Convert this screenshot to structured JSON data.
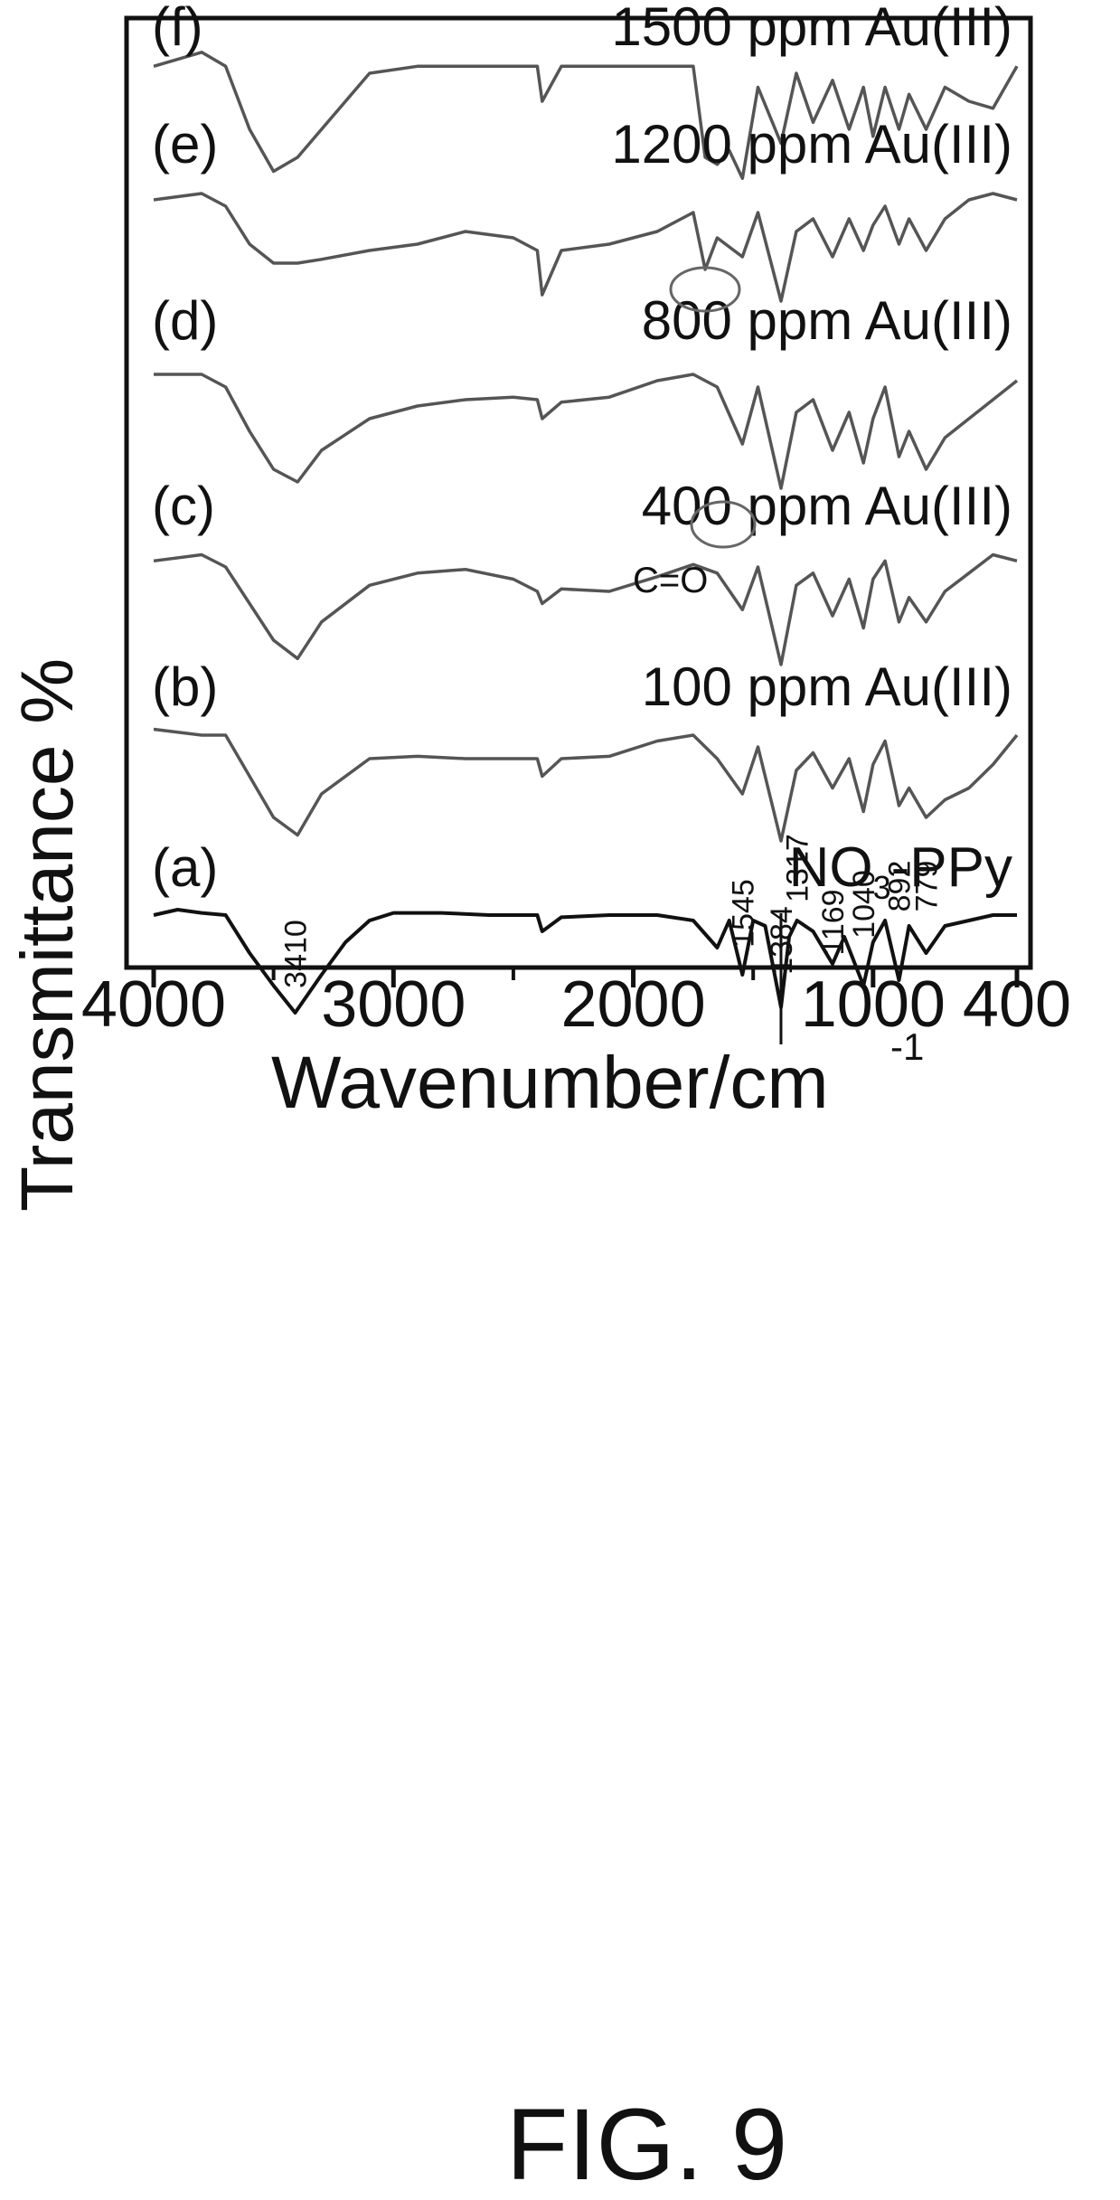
{
  "figure_label": "FIG. 9",
  "chart_data": {
    "type": "line",
    "xlabel": "Wavenumber/cm",
    "xlabel_sup": "-1",
    "ylabel": "Transmittance %",
    "xlim": [
      4000,
      400
    ],
    "x_ticks": [
      4000,
      3000,
      2000,
      1000,
      400
    ],
    "x_tick_labels": [
      "4000",
      "3000",
      "2000",
      "1000",
      "400"
    ],
    "x_minor_ticks": [
      3500,
      2500,
      1500
    ],
    "series": [
      {
        "name": "NO3-PPy",
        "panel": "(a)",
        "label": "NO",
        "label_sub": "3",
        "label_suffix": "-PPy",
        "x": [
          4000,
          3900,
          3800,
          3700,
          3600,
          3500,
          3410,
          3300,
          3200,
          3100,
          3000,
          2800,
          2600,
          2400,
          2380,
          2300,
          2100,
          1900,
          1750,
          1650,
          1600,
          1545,
          1500,
          1450,
          1384,
          1350,
          1317,
          1250,
          1169,
          1120,
          1040,
          1000,
          950,
          892,
          850,
          779,
          700,
          600,
          500,
          400
        ],
        "y": [
          0.9,
          0.95,
          0.92,
          0.9,
          0.55,
          0.25,
          0.0,
          0.35,
          0.65,
          0.85,
          0.92,
          0.92,
          0.9,
          0.9,
          0.75,
          0.88,
          0.9,
          0.9,
          0.85,
          0.6,
          0.85,
          0.35,
          0.85,
          0.8,
          0.05,
          0.7,
          0.85,
          0.75,
          0.45,
          0.7,
          0.25,
          0.65,
          0.85,
          0.3,
          0.8,
          0.55,
          0.8,
          0.85,
          0.9,
          0.9
        ]
      },
      {
        "name": "100 ppm Au(III)",
        "panel": "(b)",
        "label": "100 ppm Au(III)",
        "x": [
          4000,
          3800,
          3700,
          3600,
          3500,
          3400,
          3300,
          3100,
          2900,
          2700,
          2500,
          2400,
          2380,
          2300,
          2100,
          1900,
          1750,
          1650,
          1545,
          1480,
          1384,
          1320,
          1250,
          1169,
          1100,
          1040,
          1000,
          950,
          892,
          850,
          779,
          700,
          600,
          500,
          400
        ],
        "y": [
          0.95,
          0.9,
          0.9,
          0.55,
          0.2,
          0.05,
          0.4,
          0.7,
          0.72,
          0.7,
          0.7,
          0.7,
          0.55,
          0.7,
          0.72,
          0.85,
          0.9,
          0.7,
          0.4,
          0.8,
          0.0,
          0.6,
          0.75,
          0.45,
          0.7,
          0.25,
          0.65,
          0.85,
          0.3,
          0.45,
          0.2,
          0.35,
          0.45,
          0.65,
          0.9
        ]
      },
      {
        "name": "400 ppm Au(III)",
        "panel": "(c)",
        "label": "400 ppm Au(III)",
        "x": [
          4000,
          3800,
          3700,
          3600,
          3500,
          3400,
          3300,
          3100,
          2900,
          2700,
          2500,
          2400,
          2380,
          2300,
          2100,
          1900,
          1750,
          1650,
          1545,
          1480,
          1384,
          1320,
          1250,
          1169,
          1100,
          1040,
          1000,
          950,
          892,
          850,
          779,
          700,
          600,
          500,
          400
        ],
        "y": [
          0.85,
          0.9,
          0.8,
          0.5,
          0.2,
          0.05,
          0.35,
          0.65,
          0.75,
          0.78,
          0.7,
          0.6,
          0.5,
          0.62,
          0.6,
          0.72,
          0.82,
          0.75,
          0.45,
          0.8,
          0.0,
          0.65,
          0.75,
          0.4,
          0.7,
          0.3,
          0.7,
          0.85,
          0.35,
          0.55,
          0.35,
          0.6,
          0.75,
          0.9,
          0.85
        ]
      },
      {
        "name": "800 ppm Au(III)",
        "panel": "(d)",
        "label": "800 ppm Au(III)",
        "x": [
          4000,
          3800,
          3700,
          3600,
          3500,
          3400,
          3300,
          3100,
          2900,
          2700,
          2500,
          2400,
          2380,
          2300,
          2100,
          1900,
          1750,
          1650,
          1545,
          1480,
          1384,
          1320,
          1250,
          1169,
          1100,
          1040,
          1000,
          950,
          892,
          850,
          779,
          700,
          600,
          500,
          400
        ],
        "y": [
          0.9,
          0.9,
          0.8,
          0.45,
          0.15,
          0.05,
          0.3,
          0.55,
          0.65,
          0.7,
          0.72,
          0.7,
          0.55,
          0.68,
          0.72,
          0.85,
          0.9,
          0.8,
          0.35,
          0.8,
          0.0,
          0.6,
          0.7,
          0.3,
          0.6,
          0.2,
          0.55,
          0.8,
          0.25,
          0.45,
          0.15,
          0.4,
          0.55,
          0.7,
          0.85
        ]
      },
      {
        "name": "1200 ppm Au(III)",
        "panel": "(e)",
        "label": "1200 ppm Au(III)",
        "annotation": "C=O",
        "x": [
          4000,
          3800,
          3700,
          3600,
          3500,
          3400,
          3300,
          3100,
          2900,
          2700,
          2500,
          2400,
          2380,
          2300,
          2100,
          1900,
          1750,
          1700,
          1650,
          1545,
          1480,
          1384,
          1320,
          1250,
          1169,
          1100,
          1040,
          1000,
          950,
          892,
          850,
          779,
          700,
          600,
          500,
          400
        ],
        "y": [
          0.85,
          0.9,
          0.8,
          0.5,
          0.35,
          0.35,
          0.38,
          0.45,
          0.5,
          0.6,
          0.55,
          0.45,
          0.1,
          0.45,
          0.5,
          0.6,
          0.75,
          0.3,
          0.55,
          0.4,
          0.75,
          0.05,
          0.6,
          0.7,
          0.4,
          0.7,
          0.45,
          0.65,
          0.8,
          0.5,
          0.7,
          0.45,
          0.7,
          0.85,
          0.9,
          0.85
        ]
      },
      {
        "name": "1500 ppm Au(III)",
        "panel": "(f)",
        "label": "1500 ppm Au(III)",
        "x": [
          4000,
          3800,
          3700,
          3600,
          3500,
          3400,
          3300,
          3100,
          2900,
          2700,
          2500,
          2400,
          2380,
          2300,
          2100,
          1900,
          1750,
          1700,
          1650,
          1600,
          1545,
          1480,
          1384,
          1320,
          1250,
          1169,
          1100,
          1040,
          1000,
          950,
          892,
          850,
          779,
          700,
          600,
          500,
          400
        ],
        "y": [
          0.85,
          0.95,
          0.85,
          0.4,
          0.1,
          0.2,
          0.4,
          0.8,
          0.85,
          0.85,
          0.85,
          0.85,
          0.6,
          0.85,
          0.85,
          0.85,
          0.85,
          0.2,
          0.15,
          0.25,
          0.05,
          0.7,
          0.3,
          0.8,
          0.45,
          0.75,
          0.4,
          0.7,
          0.35,
          0.7,
          0.4,
          0.65,
          0.4,
          0.7,
          0.6,
          0.55,
          0.85
        ]
      }
    ],
    "peak_labels": [
      {
        "wavenumber": 3410,
        "text": "3410"
      },
      {
        "wavenumber": 1545,
        "text": "1545"
      },
      {
        "wavenumber": 1384,
        "text": "1384"
      },
      {
        "wavenumber": 1317,
        "text": "1317"
      },
      {
        "wavenumber": 1169,
        "text": "1169"
      },
      {
        "wavenumber": 1040,
        "text": "1040"
      },
      {
        "wavenumber": 892,
        "text": "892"
      },
      {
        "wavenumber": 779,
        "text": "779"
      }
    ],
    "grid": false,
    "legend": "none"
  }
}
